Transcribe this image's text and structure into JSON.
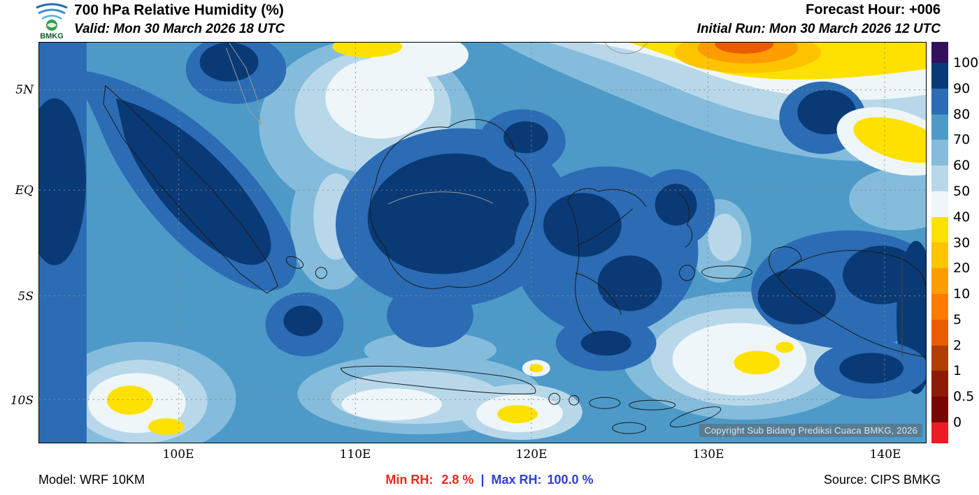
{
  "header": {
    "logo_text": "BMKG",
    "title": "700 hPa Relative Humidity (%)",
    "valid_label": "Valid: Mon 30 March 2026 18 UTC",
    "forecast_hour": "Forecast Hour: +006",
    "initial_run": "Initial Run: Mon 30 March 2026 12 UTC"
  },
  "map": {
    "lat_labels": [
      "5N",
      "EQ",
      "5S",
      "10S"
    ],
    "lon_labels": [
      "100E",
      "110E",
      "120E",
      "130E",
      "140E"
    ],
    "copyright": "Copyright Sub Bidang Prediksi Cuaca BMKG, 2026"
  },
  "colorbar": {
    "ticks": [
      "100",
      "90",
      "80",
      "70",
      "60",
      "50",
      "40",
      "30",
      "20",
      "10",
      "5",
      "2",
      "1",
      "0.5",
      "0"
    ],
    "colors": [
      "#33105e",
      "#0a3a75",
      "#2b6cb4",
      "#4d9ac9",
      "#85bcdc",
      "#b8d8ea",
      "#eef6fa",
      "#ffe100",
      "#ffc400",
      "#ff9d00",
      "#ff7a00",
      "#ea5c00",
      "#b13d02",
      "#8f1a06",
      "#7a0403",
      "#ec1c24"
    ]
  },
  "footer": {
    "model": "Model: WRF 10KM",
    "min_label": "Min RH:",
    "min_value": "2.8 %",
    "separator": "|",
    "max_label": "Max RH:",
    "max_value": "100.0 %",
    "source": "Source: CIPS BMKG"
  },
  "chart_data": {
    "type": "heatmap",
    "title": "700 hPa Relative Humidity (%)",
    "region": "Indonesia",
    "valid_time": "Mon 30 March 2026 18 UTC",
    "initial_run": "Mon 30 March 2026 12 UTC",
    "forecast_hour": "+006",
    "model": "WRF 10KM",
    "source": "CIPS BMKG",
    "units": "%",
    "x_ticks": [
      "100E",
      "110E",
      "120E",
      "130E",
      "140E"
    ],
    "y_ticks": [
      "5N",
      "EQ",
      "5S",
      "10S"
    ],
    "colorbar_levels": [
      100,
      90,
      80,
      70,
      60,
      50,
      40,
      30,
      20,
      10,
      5,
      2,
      1,
      0.5,
      0
    ],
    "colorbar_colors": [
      "#33105e",
      "#0a3a75",
      "#2b6cb4",
      "#4d9ac9",
      "#85bcdc",
      "#b8d8ea",
      "#eef6fa",
      "#ffe100",
      "#ffc400",
      "#ff9d00",
      "#ff7a00",
      "#ea5c00",
      "#b13d02",
      "#8f1a06",
      "#7a0403",
      "#ec1c24"
    ],
    "min_rh_percent": 2.8,
    "max_rh_percent": 100.0,
    "legend_position": "right",
    "grid": "dashed"
  }
}
